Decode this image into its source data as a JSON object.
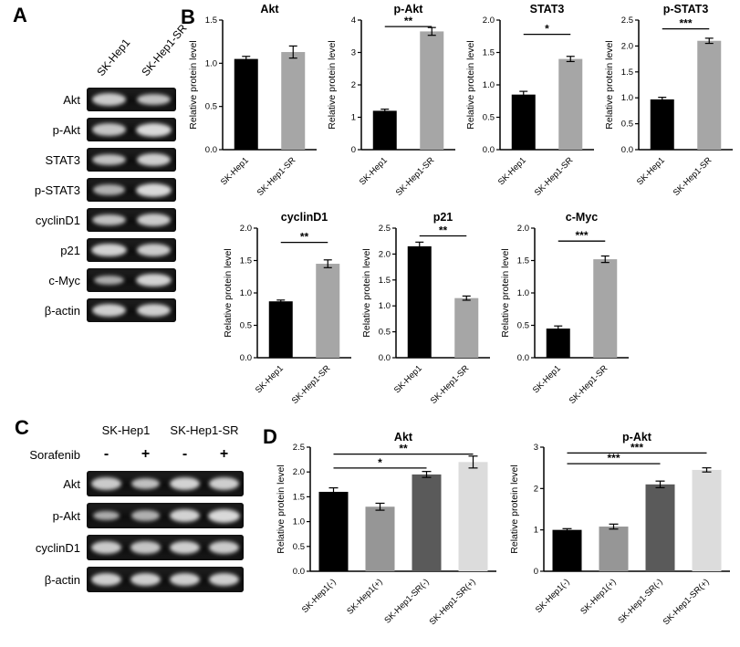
{
  "panelA": {
    "label": "A",
    "lanes": [
      "SK-Hep1",
      "SK-Hep1-SR"
    ],
    "rows": [
      {
        "label": "Akt",
        "bands": [
          0.85,
          0.75
        ]
      },
      {
        "label": "p-Akt",
        "bands": [
          0.8,
          1.0
        ]
      },
      {
        "label": "STAT3",
        "bands": [
          0.75,
          0.9
        ]
      },
      {
        "label": "p-STAT3",
        "bands": [
          0.6,
          1.0
        ]
      },
      {
        "label": "cyclinD1",
        "bands": [
          0.75,
          0.85
        ]
      },
      {
        "label": "p21",
        "bands": [
          0.95,
          0.85
        ]
      },
      {
        "label": "c-Myc",
        "bands": [
          0.55,
          0.95
        ]
      },
      {
        "label": "β-actin",
        "bands": [
          0.9,
          0.9
        ]
      }
    ]
  },
  "panelB": {
    "label": "B"
  },
  "panelC": {
    "label": "C",
    "groups": [
      "SK-Hep1",
      "SK-Hep1-SR"
    ],
    "treatment_label": "Sorafenib",
    "treatment_signs": [
      "-",
      "+",
      "-",
      "+"
    ],
    "rows": [
      {
        "label": "Akt",
        "bands": [
          0.85,
          0.75,
          0.95,
          0.9
        ]
      },
      {
        "label": "p-Akt",
        "bands": [
          0.55,
          0.6,
          0.95,
          1.0
        ]
      },
      {
        "label": "cyclinD1",
        "bands": [
          0.85,
          0.8,
          0.9,
          0.85
        ]
      },
      {
        "label": "β-actin",
        "bands": [
          0.9,
          0.9,
          0.9,
          0.9
        ]
      }
    ]
  },
  "panelD": {
    "label": "D"
  },
  "chart_data": [
    {
      "panel": "B",
      "type": "bar",
      "title": "Akt",
      "ylabel": "Relative protein level",
      "ylim": [
        0,
        1.5
      ],
      "yticks": [
        "0.0",
        "0.5",
        "1.0",
        "1.5"
      ],
      "categories": [
        "SK-Hep1",
        "SK-Hep1-SR"
      ],
      "values": [
        1.05,
        1.13
      ],
      "errors": [
        0.03,
        0.07
      ],
      "bar_colors": [
        "#000000",
        "#a6a6a6"
      ],
      "comparisons": []
    },
    {
      "panel": "B",
      "type": "bar",
      "title": "p-Akt",
      "ylabel": "Relative protein level",
      "ylim": [
        0,
        4
      ],
      "yticks": [
        "0",
        "1",
        "2",
        "3",
        "4"
      ],
      "categories": [
        "SK-Hep1",
        "SK-Hep1-SR"
      ],
      "values": [
        1.2,
        3.65
      ],
      "errors": [
        0.05,
        0.12
      ],
      "bar_colors": [
        "#000000",
        "#a6a6a6"
      ],
      "comparisons": [
        {
          "from": 0,
          "to": 1,
          "label": "**",
          "y": 3.8
        }
      ]
    },
    {
      "panel": "B",
      "type": "bar",
      "title": "STAT3",
      "ylabel": "Relative protein level",
      "ylim": [
        0,
        2
      ],
      "yticks": [
        "0.0",
        "0.5",
        "1.0",
        "1.5",
        "2.0"
      ],
      "categories": [
        "SK-Hep1",
        "SK-Hep1-SR"
      ],
      "values": [
        0.85,
        1.4
      ],
      "errors": [
        0.05,
        0.04
      ],
      "bar_colors": [
        "#000000",
        "#a6a6a6"
      ],
      "comparisons": [
        {
          "from": 0,
          "to": 1,
          "label": "*",
          "y": 1.78
        }
      ]
    },
    {
      "panel": "B",
      "type": "bar",
      "title": "p-STAT3",
      "ylabel": "Relative protein level",
      "ylim": [
        0,
        2.5
      ],
      "yticks": [
        "0.0",
        "0.5",
        "1.0",
        "1.5",
        "2.0",
        "2.5"
      ],
      "categories": [
        "SK-Hep1",
        "SK-Hep1-SR"
      ],
      "values": [
        0.97,
        2.1
      ],
      "errors": [
        0.04,
        0.05
      ],
      "bar_colors": [
        "#000000",
        "#a6a6a6"
      ],
      "comparisons": [
        {
          "from": 0,
          "to": 1,
          "label": "***",
          "y": 2.33
        }
      ]
    },
    {
      "panel": "B",
      "type": "bar",
      "title": "cyclinD1",
      "ylabel": "Relative protein level",
      "ylim": [
        0,
        2
      ],
      "yticks": [
        "0.0",
        "0.5",
        "1.0",
        "1.5",
        "2.0"
      ],
      "categories": [
        "SK-Hep1",
        "SK-Hep1-SR"
      ],
      "values": [
        0.87,
        1.45
      ],
      "errors": [
        0.02,
        0.06
      ],
      "bar_colors": [
        "#000000",
        "#a6a6a6"
      ],
      "comparisons": [
        {
          "from": 0,
          "to": 1,
          "label": "**",
          "y": 1.78
        }
      ]
    },
    {
      "panel": "B",
      "type": "bar",
      "title": "p21",
      "ylabel": "Relative protein level",
      "ylim": [
        0,
        2.5
      ],
      "yticks": [
        "0.0",
        "0.5",
        "1.0",
        "1.5",
        "2.0",
        "2.5"
      ],
      "categories": [
        "SK-Hep1",
        "SK-Hep1-SR"
      ],
      "values": [
        2.15,
        1.15
      ],
      "errors": [
        0.08,
        0.04
      ],
      "bar_colors": [
        "#000000",
        "#a6a6a6"
      ],
      "comparisons": [
        {
          "from": 0,
          "to": 1,
          "label": "**",
          "y": 2.35
        }
      ]
    },
    {
      "panel": "B",
      "type": "bar",
      "title": "c-Myc",
      "ylabel": "Relative protein level",
      "ylim": [
        0,
        2
      ],
      "yticks": [
        "0.0",
        "0.5",
        "1.0",
        "1.5",
        "2.0"
      ],
      "categories": [
        "SK-Hep1",
        "SK-Hep1-SR"
      ],
      "values": [
        0.45,
        1.52
      ],
      "errors": [
        0.04,
        0.05
      ],
      "bar_colors": [
        "#000000",
        "#a6a6a6"
      ],
      "comparisons": [
        {
          "from": 0,
          "to": 1,
          "label": "***",
          "y": 1.8
        }
      ]
    },
    {
      "panel": "D",
      "type": "bar",
      "title": "Akt",
      "ylabel": "Relative protein level",
      "ylim": [
        0,
        2.5
      ],
      "yticks": [
        "0.0",
        "0.5",
        "1.0",
        "1.5",
        "2.0",
        "2.5"
      ],
      "categories": [
        "SK-Hep1(-)",
        "SK-Hep1(+)",
        "SK-Hep1-SR(-)",
        "SK-Hep1-SR(+)"
      ],
      "values": [
        1.6,
        1.3,
        1.95,
        2.2
      ],
      "errors": [
        0.08,
        0.07,
        0.06,
        0.12
      ],
      "bar_colors": [
        "#000000",
        "#969696",
        "#5a5a5a",
        "#dcdcdc"
      ],
      "comparisons": [
        {
          "from": 0,
          "to": 2,
          "label": "*",
          "y": 2.08
        },
        {
          "from": 0,
          "to": 3,
          "label": "**",
          "y": 2.36
        }
      ]
    },
    {
      "panel": "D",
      "type": "bar",
      "title": "p-Akt",
      "ylabel": "Relative protein level",
      "ylim": [
        0,
        3
      ],
      "yticks": [
        "0",
        "1",
        "2",
        "3"
      ],
      "categories": [
        "SK-Hep1(-)",
        "SK-Hep1(+)",
        "SK-Hep1-SR(-)",
        "SK-Hep1-SR(+)"
      ],
      "values": [
        1.0,
        1.08,
        2.1,
        2.45
      ],
      "errors": [
        0.03,
        0.06,
        0.08,
        0.05
      ],
      "bar_colors": [
        "#000000",
        "#969696",
        "#5a5a5a",
        "#dcdcdc"
      ],
      "comparisons": [
        {
          "from": 0,
          "to": 2,
          "label": "***",
          "y": 2.6
        },
        {
          "from": 0,
          "to": 3,
          "label": "***",
          "y": 2.86
        }
      ]
    }
  ]
}
